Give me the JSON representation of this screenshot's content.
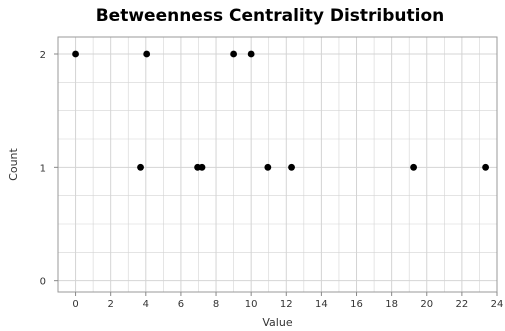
{
  "chart_data": {
    "type": "scatter",
    "title": "Betweenness Centrality Distribution",
    "xlabel": "Value",
    "ylabel": "Count",
    "xlim": [
      -1,
      24
    ],
    "ylim": [
      -0.1,
      2.15
    ],
    "xticks": [
      0,
      2,
      4,
      6,
      8,
      10,
      12,
      14,
      16,
      18,
      20,
      22,
      24
    ],
    "yticks": [
      0,
      1,
      2
    ],
    "grid": true,
    "legend": "none",
    "colors": {
      "point": "#000000",
      "grid": "#d4d4d4",
      "frame": "#999999"
    },
    "points": [
      {
        "x": 0.0,
        "y": 2
      },
      {
        "x": 4.05,
        "y": 2
      },
      {
        "x": 9.0,
        "y": 2
      },
      {
        "x": 10.0,
        "y": 2
      },
      {
        "x": 3.7,
        "y": 1
      },
      {
        "x": 6.95,
        "y": 1
      },
      {
        "x": 7.2,
        "y": 1
      },
      {
        "x": 10.95,
        "y": 1
      },
      {
        "x": 12.3,
        "y": 1
      },
      {
        "x": 19.25,
        "y": 1
      },
      {
        "x": 23.35,
        "y": 1
      }
    ]
  }
}
